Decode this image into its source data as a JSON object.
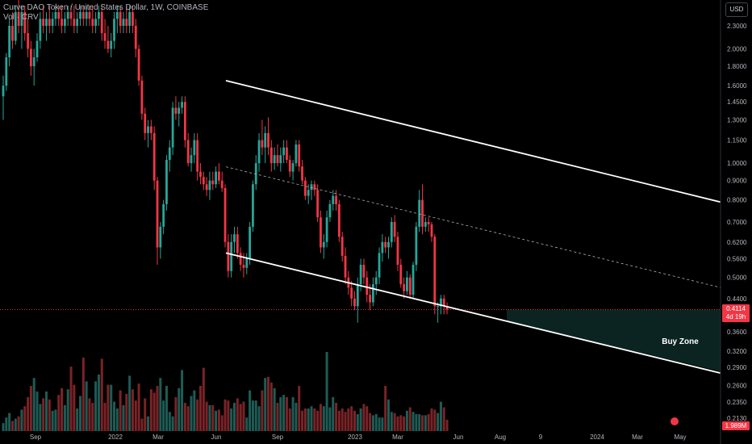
{
  "legend": {
    "title": "Curve DAO Token / United States Dollar, 1W, COINBASE",
    "volume_label": "Vol · CRV"
  },
  "currency_button": "USD",
  "price_label": {
    "value": "0.4114",
    "countdown": "4d 19h"
  },
  "volume_label": "1.989M",
  "annotation": "Buy Zone",
  "colors": {
    "up": "#26a69a",
    "down": "#f23645",
    "up_volume": "#1d5c55",
    "down_volume": "#7a2327",
    "zone": "#0b2421",
    "channel": "#ffffff",
    "axis_text": "#b2b5be"
  },
  "chart_data": {
    "type": "candlestick",
    "title": "Curve DAO Token / United States Dollar, 1W, COINBASE",
    "y_scale": "log",
    "y_axis_ticks": [
      2.3,
      2.0,
      1.8,
      1.6,
      1.45,
      1.3,
      1.15,
      1.0,
      0.9,
      0.8,
      0.7,
      0.62,
      0.56,
      0.5,
      0.44,
      0.36,
      0.32,
      0.29,
      0.26,
      0.235,
      0.213
    ],
    "y_axis_tick_labels": [
      "2.3000",
      "2.0000",
      "1.8000",
      "1.6000",
      "1.4500",
      "1.3000",
      "1.1500",
      "1.0000",
      "0.9000",
      "0.8000",
      "0.7000",
      "0.6200",
      "0.5600",
      "0.5000",
      "0.4400",
      "0.3600",
      "0.3200",
      "0.2900",
      "0.2600",
      "0.2350",
      "0.2130"
    ],
    "x_axis_labels": [
      "Sep",
      "2022",
      "Mar",
      "Jun",
      "Sep",
      "2023",
      "Mar",
      "Jun",
      "Aug",
      "9",
      "2024",
      "Mar",
      "May"
    ],
    "current_price": 0.4114,
    "candles": [
      {
        "o": 1.5,
        "h": 1.7,
        "l": 1.3,
        "c": 1.6
      },
      {
        "o": 1.6,
        "h": 1.95,
        "l": 1.55,
        "c": 1.9
      },
      {
        "o": 1.9,
        "h": 2.4,
        "l": 1.8,
        "c": 2.3
      },
      {
        "o": 2.3,
        "h": 2.5,
        "l": 2.0,
        "c": 2.1
      },
      {
        "o": 2.1,
        "h": 2.6,
        "l": 2.05,
        "c": 2.5
      },
      {
        "o": 2.5,
        "h": 2.7,
        "l": 2.2,
        "c": 2.3
      },
      {
        "o": 2.3,
        "h": 2.6,
        "l": 2.0,
        "c": 2.5
      },
      {
        "o": 2.5,
        "h": 2.6,
        "l": 2.1,
        "c": 2.2
      },
      {
        "o": 2.2,
        "h": 2.4,
        "l": 1.9,
        "c": 2.0
      },
      {
        "o": 2.0,
        "h": 2.1,
        "l": 1.7,
        "c": 1.8
      },
      {
        "o": 1.8,
        "h": 2.0,
        "l": 1.6,
        "c": 1.9
      },
      {
        "o": 1.9,
        "h": 2.2,
        "l": 1.85,
        "c": 2.1
      },
      {
        "o": 2.1,
        "h": 2.5,
        "l": 2.0,
        "c": 2.4
      },
      {
        "o": 2.4,
        "h": 2.6,
        "l": 2.2,
        "c": 2.3
      },
      {
        "o": 2.3,
        "h": 2.5,
        "l": 2.1,
        "c": 2.4
      },
      {
        "o": 2.4,
        "h": 2.6,
        "l": 2.2,
        "c": 2.3
      },
      {
        "o": 2.3,
        "h": 2.5,
        "l": 2.2,
        "c": 2.4
      },
      {
        "o": 2.4,
        "h": 2.6,
        "l": 2.3,
        "c": 2.5
      },
      {
        "o": 2.5,
        "h": 2.6,
        "l": 2.3,
        "c": 2.4
      },
      {
        "o": 2.4,
        "h": 2.6,
        "l": 2.2,
        "c": 2.3
      },
      {
        "o": 2.3,
        "h": 2.5,
        "l": 2.2,
        "c": 2.4
      },
      {
        "o": 2.4,
        "h": 2.6,
        "l": 2.3,
        "c": 2.5
      },
      {
        "o": 2.5,
        "h": 2.6,
        "l": 2.3,
        "c": 2.4
      },
      {
        "o": 2.4,
        "h": 2.6,
        "l": 2.2,
        "c": 2.3
      },
      {
        "o": 2.3,
        "h": 2.5,
        "l": 2.2,
        "c": 2.4
      },
      {
        "o": 2.4,
        "h": 2.6,
        "l": 2.3,
        "c": 2.5
      },
      {
        "o": 2.5,
        "h": 2.6,
        "l": 2.3,
        "c": 2.4
      },
      {
        "o": 2.4,
        "h": 2.6,
        "l": 2.3,
        "c": 2.5
      },
      {
        "o": 2.5,
        "h": 2.6,
        "l": 2.3,
        "c": 2.4
      },
      {
        "o": 2.4,
        "h": 2.6,
        "l": 2.2,
        "c": 2.3
      },
      {
        "o": 2.3,
        "h": 2.5,
        "l": 2.2,
        "c": 2.4
      },
      {
        "o": 2.4,
        "h": 2.6,
        "l": 2.3,
        "c": 2.5
      },
      {
        "o": 2.5,
        "h": 2.6,
        "l": 2.1,
        "c": 2.2
      },
      {
        "o": 2.2,
        "h": 2.4,
        "l": 2.0,
        "c": 2.1
      },
      {
        "o": 2.1,
        "h": 2.3,
        "l": 1.95,
        "c": 2.0
      },
      {
        "o": 2.0,
        "h": 2.2,
        "l": 1.9,
        "c": 2.1
      },
      {
        "o": 2.1,
        "h": 2.5,
        "l": 2.0,
        "c": 2.4
      },
      {
        "o": 2.4,
        "h": 2.6,
        "l": 2.2,
        "c": 2.5
      },
      {
        "o": 2.5,
        "h": 2.6,
        "l": 2.2,
        "c": 2.3
      },
      {
        "o": 2.3,
        "h": 2.5,
        "l": 2.2,
        "c": 2.4
      },
      {
        "o": 2.4,
        "h": 2.6,
        "l": 2.2,
        "c": 2.3
      },
      {
        "o": 2.3,
        "h": 2.6,
        "l": 2.2,
        "c": 2.5
      },
      {
        "o": 2.5,
        "h": 2.6,
        "l": 2.2,
        "c": 2.3
      },
      {
        "o": 2.3,
        "h": 2.4,
        "l": 1.9,
        "c": 2.0
      },
      {
        "o": 2.0,
        "h": 2.05,
        "l": 1.6,
        "c": 1.65
      },
      {
        "o": 1.65,
        "h": 1.7,
        "l": 1.3,
        "c": 1.35
      },
      {
        "o": 1.35,
        "h": 1.4,
        "l": 1.15,
        "c": 1.2
      },
      {
        "o": 1.2,
        "h": 1.3,
        "l": 1.1,
        "c": 1.25
      },
      {
        "o": 1.25,
        "h": 1.3,
        "l": 1.15,
        "c": 1.2
      },
      {
        "o": 1.2,
        "h": 1.25,
        "l": 0.85,
        "c": 0.9
      },
      {
        "o": 0.9,
        "h": 0.92,
        "l": 0.54,
        "c": 0.6
      },
      {
        "o": 0.6,
        "h": 0.7,
        "l": 0.56,
        "c": 0.68
      },
      {
        "o": 0.68,
        "h": 0.8,
        "l": 0.65,
        "c": 0.78
      },
      {
        "o": 0.78,
        "h": 1.05,
        "l": 0.75,
        "c": 1.02
      },
      {
        "o": 1.02,
        "h": 1.15,
        "l": 0.95,
        "c": 1.1
      },
      {
        "o": 1.1,
        "h": 1.45,
        "l": 1.05,
        "c": 1.4
      },
      {
        "o": 1.4,
        "h": 1.5,
        "l": 1.3,
        "c": 1.35
      },
      {
        "o": 1.35,
        "h": 1.45,
        "l": 1.25,
        "c": 1.4
      },
      {
        "o": 1.4,
        "h": 1.5,
        "l": 1.35,
        "c": 1.45
      },
      {
        "o": 1.45,
        "h": 1.5,
        "l": 1.1,
        "c": 1.15
      },
      {
        "o": 1.15,
        "h": 1.2,
        "l": 0.98,
        "c": 1.0
      },
      {
        "o": 1.0,
        "h": 1.1,
        "l": 0.95,
        "c": 1.05
      },
      {
        "o": 1.05,
        "h": 1.2,
        "l": 1.0,
        "c": 1.15
      },
      {
        "o": 1.15,
        "h": 1.2,
        "l": 0.9,
        "c": 0.95
      },
      {
        "o": 0.95,
        "h": 1.0,
        "l": 0.88,
        "c": 0.92
      },
      {
        "o": 0.92,
        "h": 0.95,
        "l": 0.85,
        "c": 0.88
      },
      {
        "o": 0.88,
        "h": 0.92,
        "l": 0.82,
        "c": 0.85
      },
      {
        "o": 0.85,
        "h": 0.95,
        "l": 0.8,
        "c": 0.9
      },
      {
        "o": 0.9,
        "h": 0.95,
        "l": 0.85,
        "c": 0.88
      },
      {
        "o": 0.88,
        "h": 0.98,
        "l": 0.86,
        "c": 0.95
      },
      {
        "o": 0.95,
        "h": 1.0,
        "l": 0.88,
        "c": 0.9
      },
      {
        "o": 0.9,
        "h": 0.95,
        "l": 0.84,
        "c": 0.86
      },
      {
        "o": 0.86,
        "h": 0.88,
        "l": 0.6,
        "c": 0.62
      },
      {
        "o": 0.62,
        "h": 0.65,
        "l": 0.5,
        "c": 0.52
      },
      {
        "o": 0.52,
        "h": 0.65,
        "l": 0.5,
        "c": 0.62
      },
      {
        "o": 0.62,
        "h": 0.68,
        "l": 0.58,
        "c": 0.65
      },
      {
        "o": 0.65,
        "h": 0.68,
        "l": 0.56,
        "c": 0.58
      },
      {
        "o": 0.58,
        "h": 0.6,
        "l": 0.52,
        "c": 0.54
      },
      {
        "o": 0.54,
        "h": 0.58,
        "l": 0.5,
        "c": 0.53
      },
      {
        "o": 0.53,
        "h": 0.58,
        "l": 0.51,
        "c": 0.56
      },
      {
        "o": 0.56,
        "h": 0.7,
        "l": 0.54,
        "c": 0.68
      },
      {
        "o": 0.68,
        "h": 0.9,
        "l": 0.66,
        "c": 0.88
      },
      {
        "o": 0.88,
        "h": 1.05,
        "l": 0.85,
        "c": 1.0
      },
      {
        "o": 1.0,
        "h": 1.2,
        "l": 0.95,
        "c": 1.15
      },
      {
        "o": 1.15,
        "h": 1.3,
        "l": 1.05,
        "c": 1.1
      },
      {
        "o": 1.1,
        "h": 1.25,
        "l": 1.0,
        "c": 1.2
      },
      {
        "o": 1.2,
        "h": 1.32,
        "l": 1.05,
        "c": 1.1
      },
      {
        "o": 1.1,
        "h": 1.15,
        "l": 0.95,
        "c": 1.0
      },
      {
        "o": 1.0,
        "h": 1.1,
        "l": 0.96,
        "c": 1.05
      },
      {
        "o": 1.05,
        "h": 1.12,
        "l": 0.98,
        "c": 1.0
      },
      {
        "o": 1.0,
        "h": 1.1,
        "l": 0.95,
        "c": 1.05
      },
      {
        "o": 1.05,
        "h": 1.15,
        "l": 1.0,
        "c": 1.1
      },
      {
        "o": 1.1,
        "h": 1.15,
        "l": 1.0,
        "c": 1.02
      },
      {
        "o": 1.02,
        "h": 1.05,
        "l": 0.92,
        "c": 0.95
      },
      {
        "o": 0.95,
        "h": 1.02,
        "l": 0.9,
        "c": 1.0
      },
      {
        "o": 1.0,
        "h": 1.15,
        "l": 0.98,
        "c": 1.12
      },
      {
        "o": 1.12,
        "h": 1.15,
        "l": 0.95,
        "c": 0.98
      },
      {
        "o": 0.98,
        "h": 1.02,
        "l": 0.88,
        "c": 0.9
      },
      {
        "o": 0.9,
        "h": 0.92,
        "l": 0.8,
        "c": 0.82
      },
      {
        "o": 0.82,
        "h": 0.88,
        "l": 0.78,
        "c": 0.85
      },
      {
        "o": 0.85,
        "h": 0.9,
        "l": 0.8,
        "c": 0.88
      },
      {
        "o": 0.88,
        "h": 0.9,
        "l": 0.82,
        "c": 0.85
      },
      {
        "o": 0.85,
        "h": 0.88,
        "l": 0.7,
        "c": 0.72
      },
      {
        "o": 0.72,
        "h": 0.75,
        "l": 0.58,
        "c": 0.6
      },
      {
        "o": 0.6,
        "h": 0.65,
        "l": 0.56,
        "c": 0.62
      },
      {
        "o": 0.62,
        "h": 0.75,
        "l": 0.6,
        "c": 0.72
      },
      {
        "o": 0.72,
        "h": 0.8,
        "l": 0.7,
        "c": 0.78
      },
      {
        "o": 0.78,
        "h": 0.85,
        "l": 0.75,
        "c": 0.82
      },
      {
        "o": 0.82,
        "h": 0.85,
        "l": 0.75,
        "c": 0.78
      },
      {
        "o": 0.78,
        "h": 0.8,
        "l": 0.62,
        "c": 0.64
      },
      {
        "o": 0.64,
        "h": 0.66,
        "l": 0.55,
        "c": 0.57
      },
      {
        "o": 0.57,
        "h": 0.6,
        "l": 0.48,
        "c": 0.5
      },
      {
        "o": 0.5,
        "h": 0.52,
        "l": 0.45,
        "c": 0.47
      },
      {
        "o": 0.47,
        "h": 0.49,
        "l": 0.42,
        "c": 0.44
      },
      {
        "o": 0.44,
        "h": 0.46,
        "l": 0.41,
        "c": 0.42
      },
      {
        "o": 0.42,
        "h": 0.5,
        "l": 0.38,
        "c": 0.48
      },
      {
        "o": 0.48,
        "h": 0.56,
        "l": 0.46,
        "c": 0.54
      },
      {
        "o": 0.54,
        "h": 0.56,
        "l": 0.48,
        "c": 0.5
      },
      {
        "o": 0.5,
        "h": 0.52,
        "l": 0.43,
        "c": 0.45
      },
      {
        "o": 0.45,
        "h": 0.48,
        "l": 0.41,
        "c": 0.43
      },
      {
        "o": 0.43,
        "h": 0.5,
        "l": 0.42,
        "c": 0.48
      },
      {
        "o": 0.48,
        "h": 0.52,
        "l": 0.45,
        "c": 0.5
      },
      {
        "o": 0.5,
        "h": 0.6,
        "l": 0.48,
        "c": 0.58
      },
      {
        "o": 0.58,
        "h": 0.65,
        "l": 0.55,
        "c": 0.62
      },
      {
        "o": 0.62,
        "h": 0.64,
        "l": 0.58,
        "c": 0.6
      },
      {
        "o": 0.6,
        "h": 0.64,
        "l": 0.56,
        "c": 0.62
      },
      {
        "o": 0.62,
        "h": 0.72,
        "l": 0.6,
        "c": 0.7
      },
      {
        "o": 0.7,
        "h": 0.73,
        "l": 0.62,
        "c": 0.64
      },
      {
        "o": 0.64,
        "h": 0.66,
        "l": 0.52,
        "c": 0.54
      },
      {
        "o": 0.54,
        "h": 0.56,
        "l": 0.47,
        "c": 0.48
      },
      {
        "o": 0.48,
        "h": 0.5,
        "l": 0.44,
        "c": 0.46
      },
      {
        "o": 0.46,
        "h": 0.52,
        "l": 0.45,
        "c": 0.5
      },
      {
        "o": 0.5,
        "h": 0.51,
        "l": 0.44,
        "c": 0.45
      },
      {
        "o": 0.45,
        "h": 0.55,
        "l": 0.44,
        "c": 0.54
      },
      {
        "o": 0.54,
        "h": 0.7,
        "l": 0.52,
        "c": 0.68
      },
      {
        "o": 0.68,
        "h": 0.85,
        "l": 0.66,
        "c": 0.8
      },
      {
        "o": 0.8,
        "h": 0.88,
        "l": 0.65,
        "c": 0.68
      },
      {
        "o": 0.68,
        "h": 0.72,
        "l": 0.66,
        "c": 0.7
      },
      {
        "o": 0.7,
        "h": 0.72,
        "l": 0.66,
        "c": 0.69
      },
      {
        "o": 0.69,
        "h": 0.7,
        "l": 0.62,
        "c": 0.64
      },
      {
        "o": 0.64,
        "h": 0.65,
        "l": 0.4,
        "c": 0.42
      },
      {
        "o": 0.42,
        "h": 0.43,
        "l": 0.38,
        "c": 0.42
      },
      {
        "o": 0.42,
        "h": 0.45,
        "l": 0.4,
        "c": 0.44
      },
      {
        "o": 0.44,
        "h": 0.45,
        "l": 0.4,
        "c": 0.42
      },
      {
        "o": 0.42,
        "h": 0.43,
        "l": 0.4,
        "c": 0.4114
      }
    ],
    "volumes": [
      0.07,
      0.12,
      0.16,
      0.09,
      0.11,
      0.13,
      0.19,
      0.22,
      0.3,
      0.4,
      0.47,
      0.35,
      0.24,
      0.29,
      0.35,
      0.28,
      0.18,
      0.19,
      0.32,
      0.38,
      0.23,
      0.37,
      0.57,
      0.41,
      0.2,
      0.31,
      0.65,
      0.44,
      0.29,
      0.25,
      0.44,
      0.5,
      0.64,
      0.25,
      0.41,
      0.41,
      0.26,
      0.2,
      0.36,
      0.23,
      0.33,
      0.49,
      0.37,
      0.27,
      0.42,
      0.11,
      0.29,
      0.13,
      0.37,
      0.34,
      0.4,
      0.47,
      0.27,
      0.4,
      0.17,
      0.13,
      0.3,
      0.38,
      0.54,
      0.25,
      0.22,
      0.31,
      0.36,
      0.28,
      0.4,
      0.56,
      0.26,
      0.23,
      0.23,
      0.18,
      0.19,
      0.14,
      0.28,
      0.27,
      0.2,
      0.25,
      0.29,
      0.24,
      0.26,
      0.12,
      0.36,
      0.27,
      0.27,
      0.22,
      0.36,
      0.47,
      0.48,
      0.43,
      0.38,
      0.25,
      0.3,
      0.32,
      0.3,
      0.2,
      0.3,
      0.25,
      0.4,
      0.18,
      0.2,
      0.2,
      0.22,
      0.2,
      0.18,
      0.24,
      0.22,
      0.7,
      0.21,
      0.3,
      0.25,
      0.18,
      0.2,
      0.17,
      0.2,
      0.22,
      0.18,
      0.15,
      0.2,
      0.24,
      0.22,
      0.16,
      0.14,
      0.15,
      0.12,
      0.12,
      0.4,
      0.28,
      0.17,
      0.16,
      0.13,
      0.14,
      0.13,
      0.18,
      0.21,
      0.17,
      0.15,
      0.15,
      0.14,
      0.14,
      0.15,
      0.2,
      0.19,
      0.16,
      0.26,
      0.21,
      0.1
    ],
    "channel_upper": [
      {
        "date_label": "Jun",
        "price": 1.65
      },
      {
        "date_label": "May",
        "price": 0.79
      }
    ],
    "channel_lower": [
      {
        "date_label": "Jun",
        "price": 0.58
      },
      {
        "date_label": "May",
        "price": 0.28
      }
    ],
    "channel_mid_dashed": true,
    "zone_label": "Buy Zone"
  }
}
